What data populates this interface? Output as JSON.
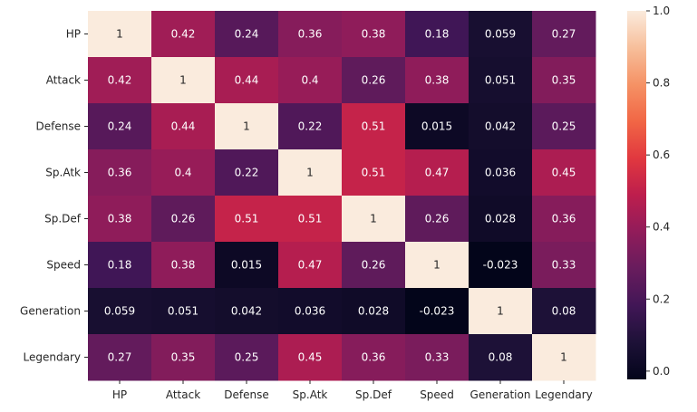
{
  "chart_data": {
    "type": "heatmap",
    "title": "",
    "xlabel": "",
    "ylabel": "",
    "rows": [
      "HP",
      "Attack",
      "Defense",
      "Sp.Atk",
      "Sp.Def",
      "Speed",
      "Generation",
      "Legendary"
    ],
    "columns": [
      "HP",
      "Attack",
      "Defense",
      "Sp.Atk",
      "Sp.Def",
      "Speed",
      "Generation",
      "Legendary"
    ],
    "values": [
      [
        1,
        0.42,
        0.24,
        0.36,
        0.38,
        0.18,
        0.059,
        0.27
      ],
      [
        0.42,
        1,
        0.44,
        0.4,
        0.26,
        0.38,
        0.051,
        0.35
      ],
      [
        0.24,
        0.44,
        1,
        0.22,
        0.51,
        0.015,
        0.042,
        0.25
      ],
      [
        0.36,
        0.4,
        0.22,
        1,
        0.51,
        0.47,
        0.036,
        0.45
      ],
      [
        0.38,
        0.26,
        0.51,
        0.51,
        1,
        0.26,
        0.028,
        0.36
      ],
      [
        0.18,
        0.38,
        0.015,
        0.47,
        0.26,
        1,
        -0.023,
        0.33
      ],
      [
        0.059,
        0.051,
        0.042,
        0.036,
        0.028,
        -0.023,
        1,
        0.08
      ],
      [
        0.27,
        0.35,
        0.25,
        0.45,
        0.36,
        0.33,
        0.08,
        1
      ]
    ],
    "annotations": [
      [
        "1",
        "0.42",
        "0.24",
        "0.36",
        "0.38",
        "0.18",
        "0.059",
        "0.27"
      ],
      [
        "0.42",
        "1",
        "0.44",
        "0.4",
        "0.26",
        "0.38",
        "0.051",
        "0.35"
      ],
      [
        "0.24",
        "0.44",
        "1",
        "0.22",
        "0.51",
        "0.015",
        "0.042",
        "0.25"
      ],
      [
        "0.36",
        "0.4",
        "0.22",
        "1",
        "0.51",
        "0.47",
        "0.036",
        "0.45"
      ],
      [
        "0.38",
        "0.26",
        "0.51",
        "0.51",
        "1",
        "0.26",
        "0.028",
        "0.36"
      ],
      [
        "0.18",
        "0.38",
        "0.015",
        "0.47",
        "0.26",
        "1",
        "-0.023",
        "0.33"
      ],
      [
        "0.059",
        "0.051",
        "0.042",
        "0.036",
        "0.028",
        "-0.023",
        "1",
        "0.08"
      ],
      [
        "0.27",
        "0.35",
        "0.25",
        "0.45",
        "0.36",
        "0.33",
        "0.08",
        "1"
      ]
    ],
    "vmin": -0.023,
    "vmax": 1.0,
    "colormap": "rocket",
    "colorbar": {
      "ticks": [
        0.0,
        0.2,
        0.4,
        0.6,
        0.8,
        1.0
      ],
      "tick_labels": [
        "0.0",
        "0.2",
        "0.4",
        "0.6",
        "0.8",
        "1.0"
      ]
    }
  }
}
